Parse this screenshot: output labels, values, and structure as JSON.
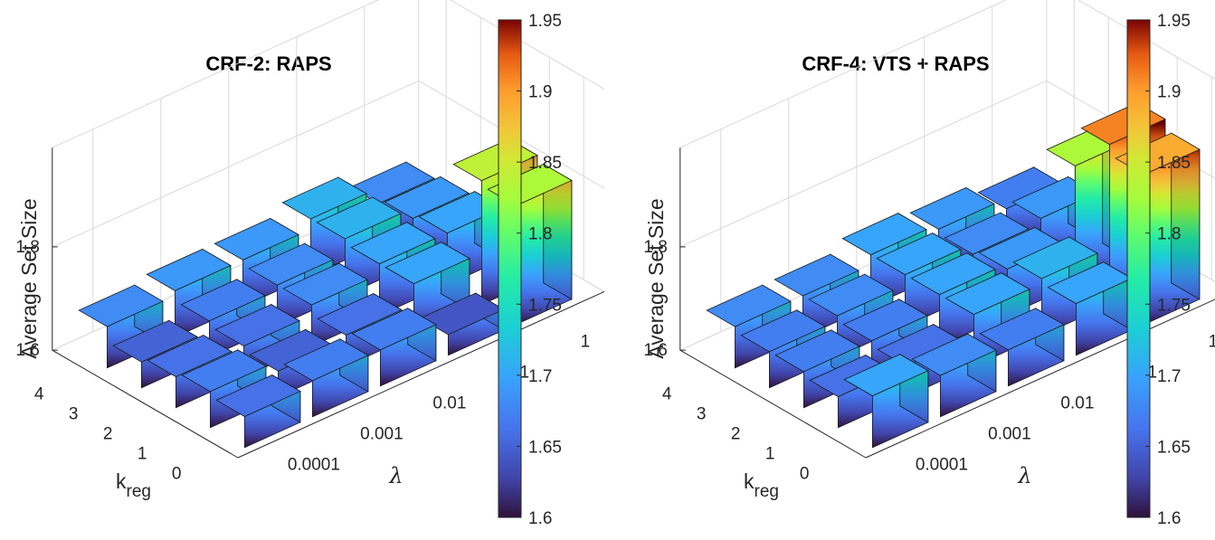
{
  "colormap": "turbo",
  "chart_data": [
    {
      "type": "bar3",
      "title": "CRF-2: RAPS",
      "zlabel": "Average Set Size",
      "xlabel": "λ",
      "ylabel_main": "k",
      "ylabel_sub": "reg",
      "x_ticks": [
        "0.0001",
        "0.001",
        "0.01",
        "0.1",
        "1"
      ],
      "y_ticks": [
        "0",
        "1",
        "2",
        "3",
        "4"
      ],
      "z_ticks": [
        "1.6",
        "1.8"
      ],
      "zlim": [
        1.6,
        1.95
      ],
      "values": [
        [
          1.66,
          1.67,
          1.66,
          1.65,
          1.68
        ],
        [
          1.67,
          1.65,
          1.66,
          1.67,
          1.69
        ],
        [
          1.67,
          1.66,
          1.68,
          1.68,
          1.69
        ],
        [
          1.64,
          1.7,
          1.7,
          1.71,
          1.71
        ],
        [
          1.83,
          1.84,
          1.7,
          1.69,
          1.68
        ]
      ],
      "colorbar": {
        "range": [
          1.6,
          1.95
        ],
        "ticks": [
          "1.6",
          "1.65",
          "1.7",
          "1.75",
          "1.8",
          "1.85",
          "1.9",
          "1.95"
        ]
      }
    },
    {
      "type": "bar3",
      "title": "CRF-4: VTS + RAPS",
      "zlabel": "Average Set Size",
      "xlabel": "λ",
      "ylabel_main": "k",
      "ylabel_sub": "reg",
      "x_ticks": [
        "0.0001",
        "0.001",
        "0.01",
        "0.1",
        "1"
      ],
      "y_ticks": [
        "0",
        "1",
        "2",
        "3",
        "4"
      ],
      "z_ticks": [
        "1.6",
        "1.8"
      ],
      "zlim": [
        1.6,
        1.95
      ],
      "values": [
        [
          1.7,
          1.66,
          1.67,
          1.67,
          1.68
        ],
        [
          1.68,
          1.66,
          1.67,
          1.68,
          1.68
        ],
        [
          1.67,
          1.7,
          1.7,
          1.7,
          1.7
        ],
        [
          1.7,
          1.71,
          1.69,
          1.68,
          1.69
        ],
        [
          1.89,
          1.91,
          1.83,
          1.69,
          1.67
        ]
      ],
      "colorbar": {
        "range": [
          1.6,
          1.95
        ],
        "ticks": [
          "1.6",
          "1.65",
          "1.7",
          "1.75",
          "1.8",
          "1.85",
          "1.9",
          "1.95"
        ]
      }
    }
  ]
}
